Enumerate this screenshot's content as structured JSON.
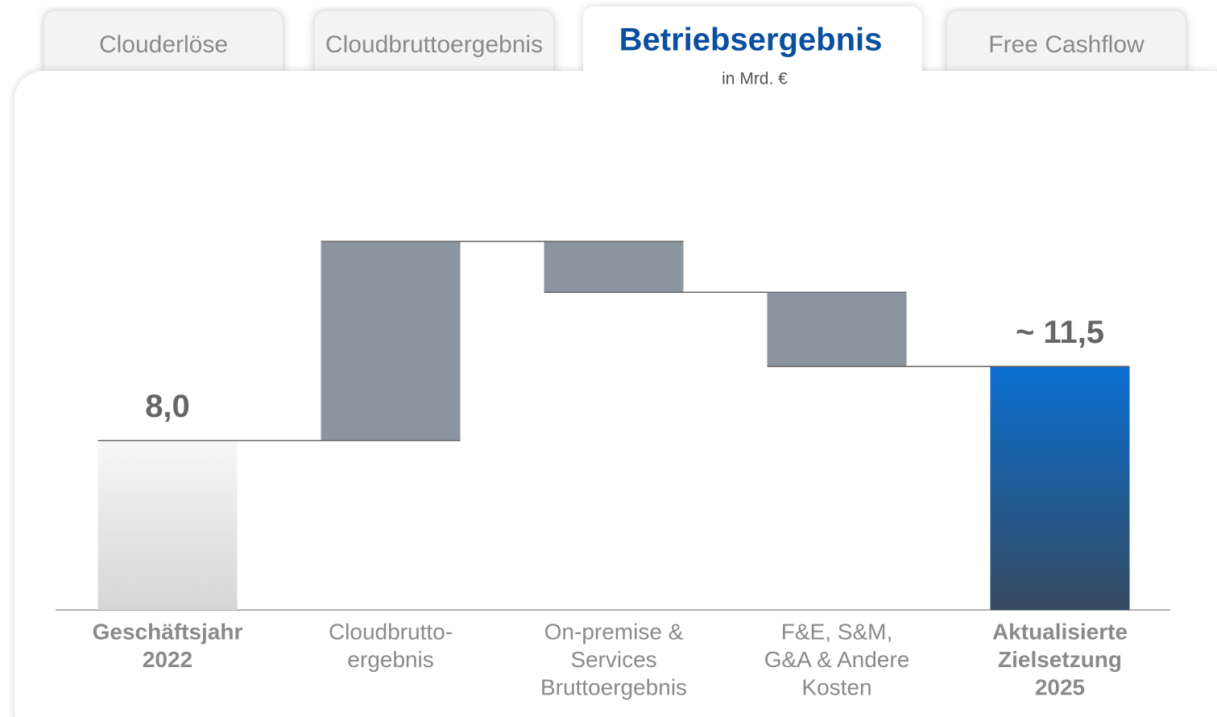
{
  "tabs": [
    "Clouderlöse",
    "Cloudbruttoergebnis",
    "Betriebsergebnis",
    "Free Cashflow"
  ],
  "active_tab": 2,
  "chart_data": {
    "type": "waterfall",
    "subtitle": "in Mrd. €",
    "categories": [
      [
        "Geschäftsjahr",
        "2022"
      ],
      [
        "Cloudbrutto-",
        "ergebnis"
      ],
      [
        "On-premise &",
        "Services",
        "Bruttoergebnis"
      ],
      [
        "F&E, S&M,",
        "G&A & Andere",
        "Kosten"
      ],
      [
        "Aktualisierte",
        "Zielsetzung",
        "2025"
      ]
    ],
    "kinds": [
      "total",
      "delta",
      "delta",
      "delta",
      "total"
    ],
    "values": [
      8.0,
      9.4,
      -2.4,
      -3.5,
      11.5
    ],
    "value_labels": [
      "8,0",
      null,
      null,
      null,
      "~ 11,5"
    ],
    "colors": {
      "start": "#d8d8d8",
      "delta": "#8a95a0",
      "end": "#0a6ed1"
    },
    "ylim": [
      0,
      25
    ]
  }
}
